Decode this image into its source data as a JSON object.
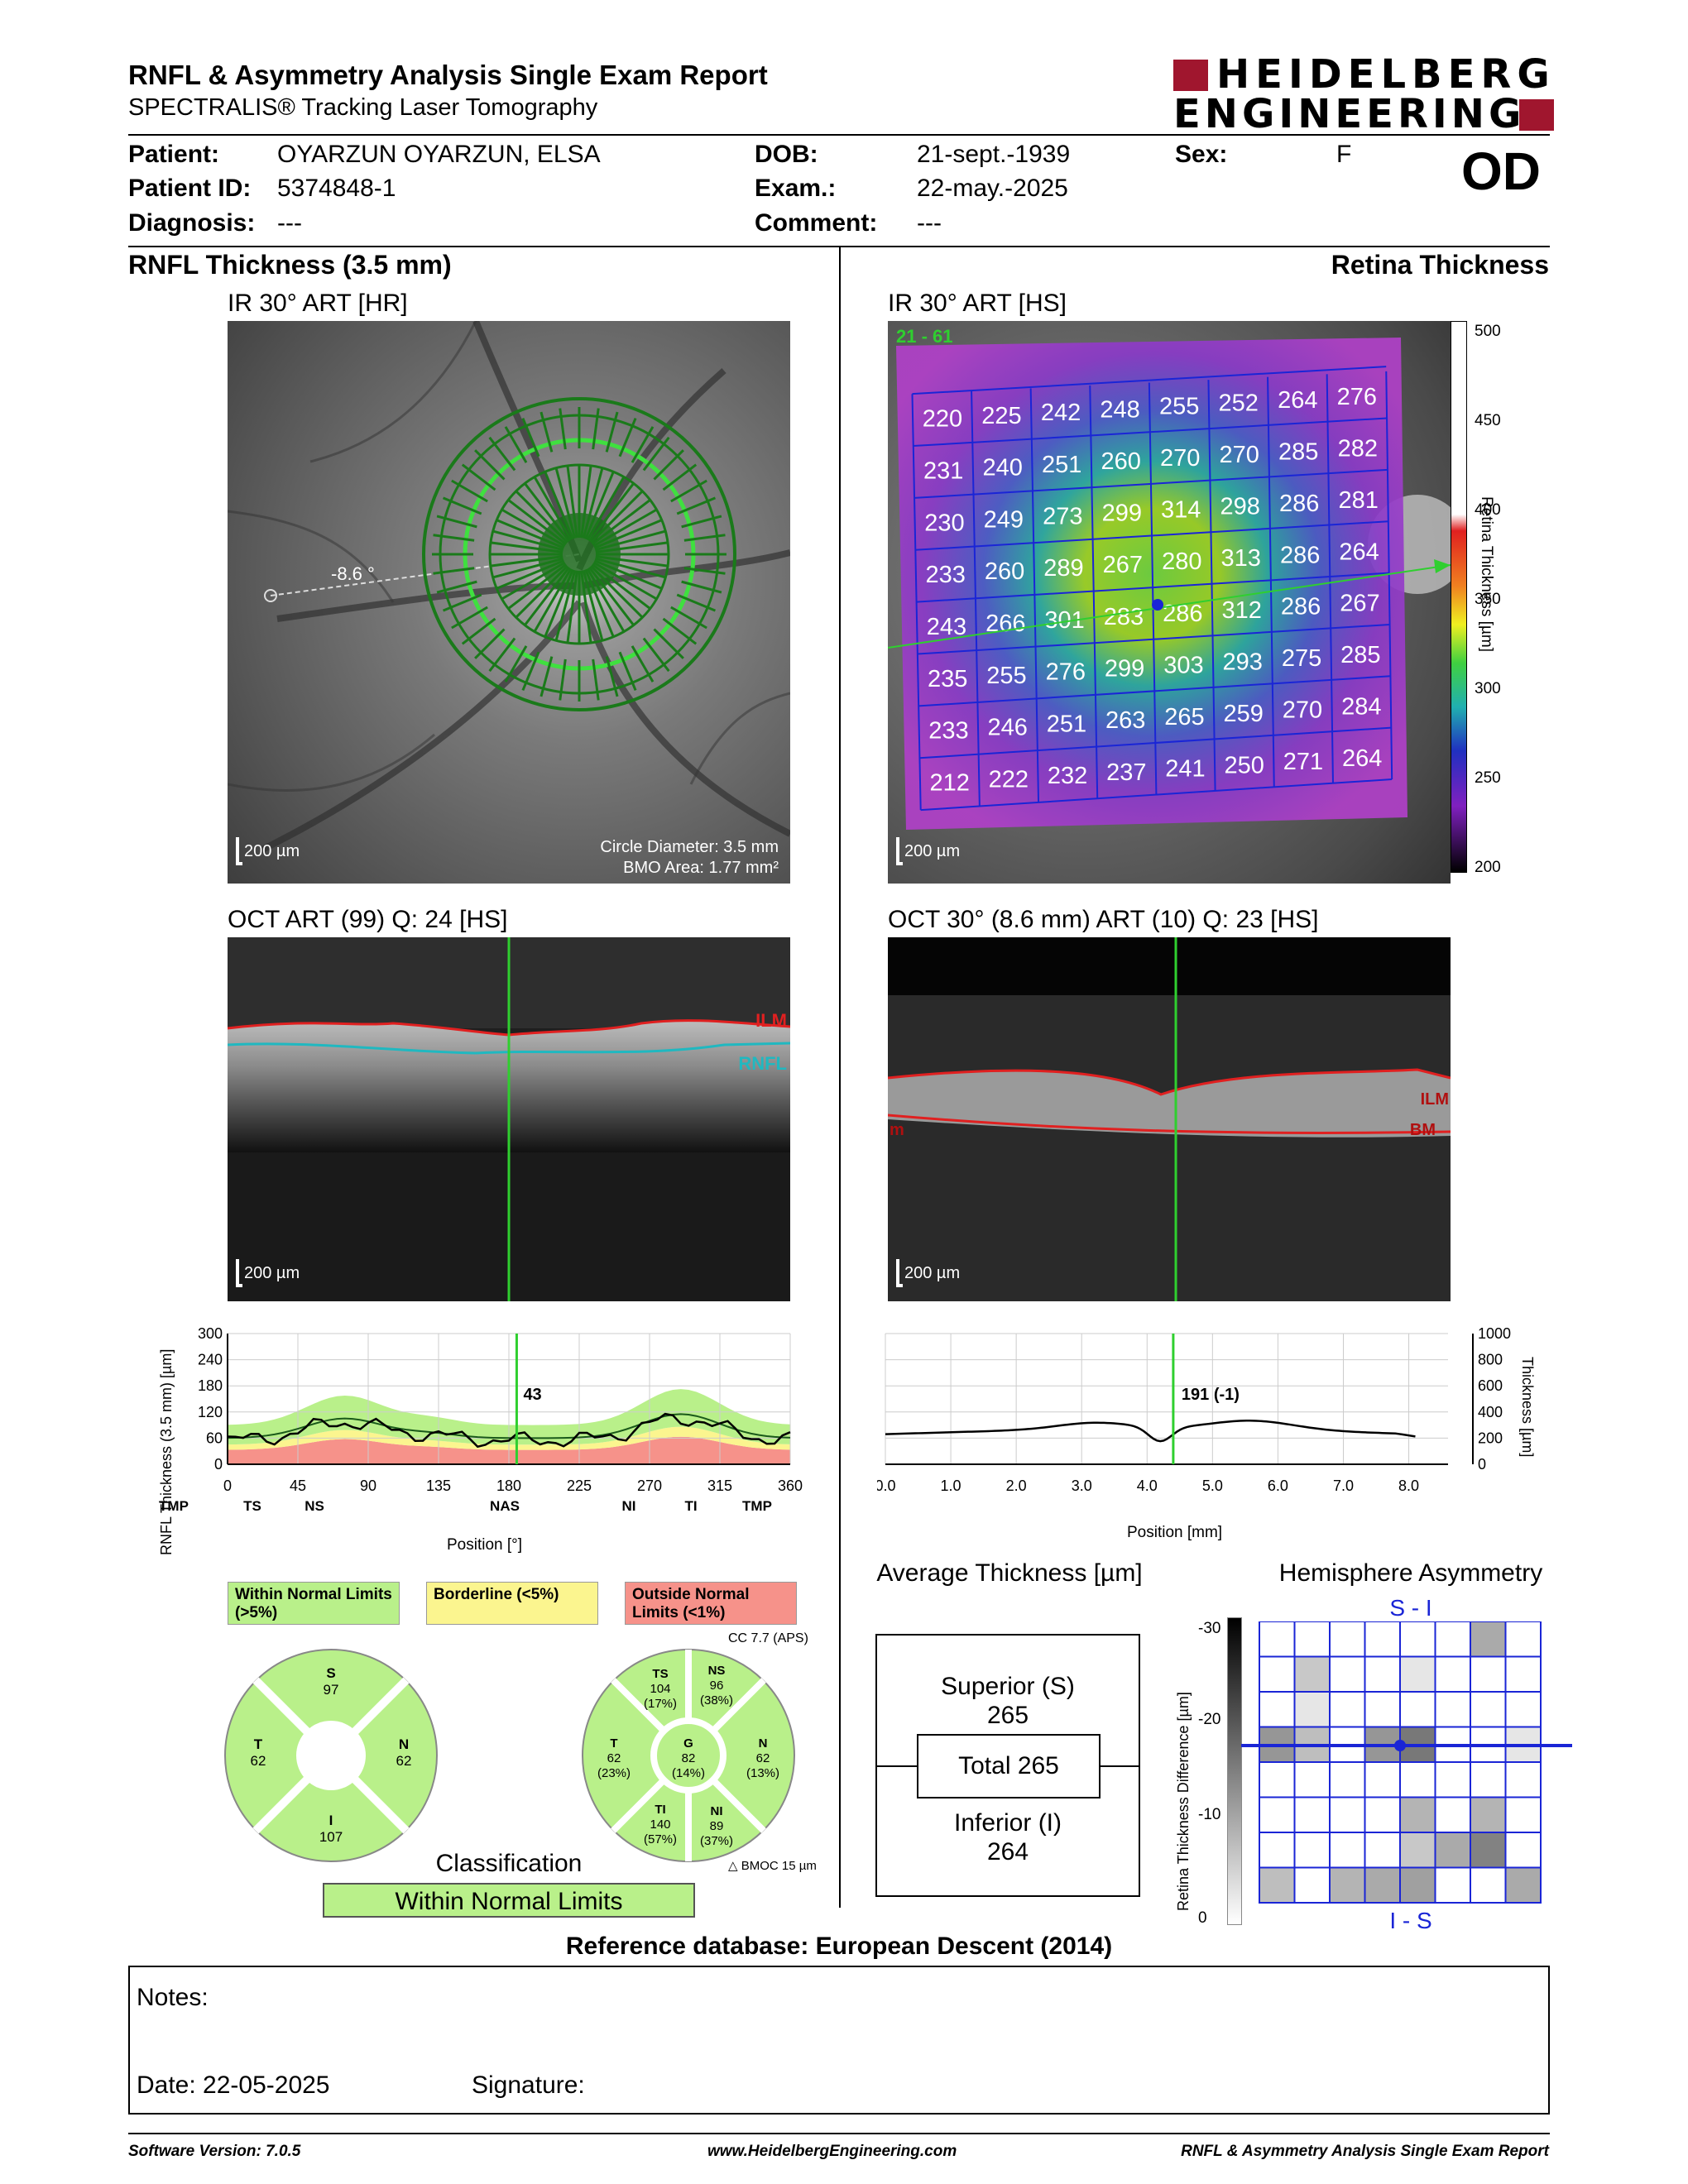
{
  "header": {
    "title": "RNFL & Asymmetry Analysis Single Exam Report",
    "subtitle": "SPECTRALIS® Tracking Laser Tomography",
    "logo_line1": "HEIDELBERG",
    "logo_line2": "ENGINEERING",
    "eye": "OD"
  },
  "patient": {
    "patient_label": "Patient:",
    "patient_value": "OYARZUN OYARZUN, ELSA",
    "id_label": "Patient ID:",
    "id_value": "5374848-1",
    "diag_label": "Diagnosis:",
    "diag_value": "---",
    "dob_label": "DOB:",
    "dob_value": "21-sept.-1939",
    "exam_label": "Exam.:",
    "exam_value": "22-may.-2025",
    "comment_label": "Comment:",
    "comment_value": "---",
    "sex_label": "Sex:",
    "sex_value": "F"
  },
  "left": {
    "section_title": "RNFL Thickness (3.5 mm)",
    "ir_label": "IR 30° ART [HR]",
    "ir_angle": "-8.6 °",
    "ir_scale": "200 µm",
    "circle_diam": "Circle Diameter: 3.5 mm",
    "bmo_area": "BMO Area: 1.77 mm²",
    "oct_label": "OCT ART (99) Q: 24 [HS]",
    "oct_scale": "200 µm",
    "ilm": "ILM",
    "rnfl": "RNFL"
  },
  "right": {
    "section_title": "Retina Thickness",
    "ir_label": "IR 30° ART [HS]",
    "ir_corner": "21 - 61",
    "ir_scale": "200 µm",
    "colorbar_label": "Retina Thickness [µm]",
    "colorbar_ticks": [
      "500",
      "450",
      "400",
      "350",
      "300",
      "250",
      "200"
    ],
    "oct_label": "OCT 30° (8.6 mm) ART (10) Q: 23 [HS]",
    "oct_scale": "200 µm",
    "ilm": "ILM",
    "bm": "BM",
    "bm_left": "m"
  },
  "grid_values": [
    [
      220,
      225,
      242,
      248,
      255,
      252,
      264,
      276
    ],
    [
      231,
      240,
      251,
      260,
      270,
      270,
      285,
      282
    ],
    [
      230,
      249,
      273,
      299,
      314,
      298,
      286,
      281
    ],
    [
      233,
      260,
      289,
      267,
      280,
      313,
      286,
      264
    ],
    [
      243,
      266,
      301,
      283,
      286,
      312,
      286,
      267
    ],
    [
      235,
      255,
      276,
      299,
      303,
      293,
      275,
      285
    ],
    [
      233,
      246,
      251,
      263,
      265,
      259,
      270,
      284
    ],
    [
      212,
      222,
      232,
      237,
      241,
      250,
      271,
      264
    ]
  ],
  "chart_data": [
    {
      "type": "line",
      "ylabel": "RNFL Thickness (3.5 mm) [µm]",
      "xlabel": "Position [°]",
      "yticks": [
        "300",
        "240",
        "180",
        "120",
        "60",
        "0"
      ],
      "xticks": [
        "0",
        "45",
        "90",
        "135",
        "180",
        "225",
        "270",
        "315",
        "360"
      ],
      "sector_labels": [
        "TMP",
        "TS",
        "NS",
        "NAS",
        "NI",
        "TI",
        "TMP"
      ],
      "cursor_value": "43",
      "ylim": [
        0,
        300
      ],
      "xlim": [
        0,
        360
      ]
    },
    {
      "type": "line",
      "ylabel": "Thickness [µm]",
      "xlabel": "Position [mm]",
      "yticks": [
        "1000",
        "800",
        "600",
        "400",
        "200",
        "0"
      ],
      "xticks": [
        "0.0",
        "1.0",
        "2.0",
        "3.0",
        "4.0",
        "5.0",
        "6.0",
        "7.0",
        "8.0"
      ],
      "cursor_value": "191 (-1)",
      "ylim": [
        0,
        1000
      ],
      "xlim": [
        0,
        8.6
      ]
    }
  ],
  "legend": {
    "within": "Within Normal Limits (>5%)",
    "borderline": "Borderline (<5%)",
    "outside": "Outside Normal Limits (<1%)"
  },
  "pie4": {
    "S": "S",
    "S_val": "97",
    "T": "T",
    "T_val": "62",
    "N": "N",
    "N_val": "62",
    "I": "I",
    "I_val": "107"
  },
  "pie6": {
    "cc": "CC 7.7 (APS)",
    "TS": "TS",
    "TS_val": "104",
    "TS_pct": "(17%)",
    "NS": "NS",
    "NS_val": "96",
    "NS_pct": "(38%)",
    "T": "T",
    "T_val": "62",
    "T_pct": "(23%)",
    "G": "G",
    "G_val": "82",
    "G_pct": "(14%)",
    "N": "N",
    "N_val": "62",
    "N_pct": "(13%)",
    "TI": "TI",
    "TI_val": "140",
    "TI_pct": "(57%)",
    "NI": "NI",
    "NI_val": "89",
    "NI_pct": "(37%)",
    "bmoc": "BMOC 15 µm"
  },
  "classification": {
    "title": "Classification",
    "value": "Within Normal Limits"
  },
  "avg": {
    "title": "Average Thickness [µm]",
    "superior_label": "Superior (S)",
    "superior_value": "265",
    "total": "Total 265",
    "inferior_label": "Inferior (I)",
    "inferior_value": "264"
  },
  "hemi": {
    "title": "Hemisphere Asymmetry",
    "top": "S - I",
    "bottom": "I - S",
    "ylabel": "Retina Thickness Difference [µm]",
    "ticks": [
      "-30",
      "-20",
      "-10",
      "0"
    ]
  },
  "reference": "Reference database: European Descent (2014)",
  "notes": {
    "notes_label": "Notes:",
    "date": "Date: 22-05-2025",
    "signature": "Signature:"
  },
  "footer": {
    "left": "Software Version: 7.0.5",
    "center": "www.HeidelbergEngineering.com",
    "right": "RNFL & Asymmetry Analysis Single Exam Report"
  },
  "colors": {
    "normal": "#b9f08a",
    "border": "#fbf58f",
    "outside": "#f6928a",
    "accent_blue": "#1a25d6",
    "logo_red": "#a0162e"
  }
}
